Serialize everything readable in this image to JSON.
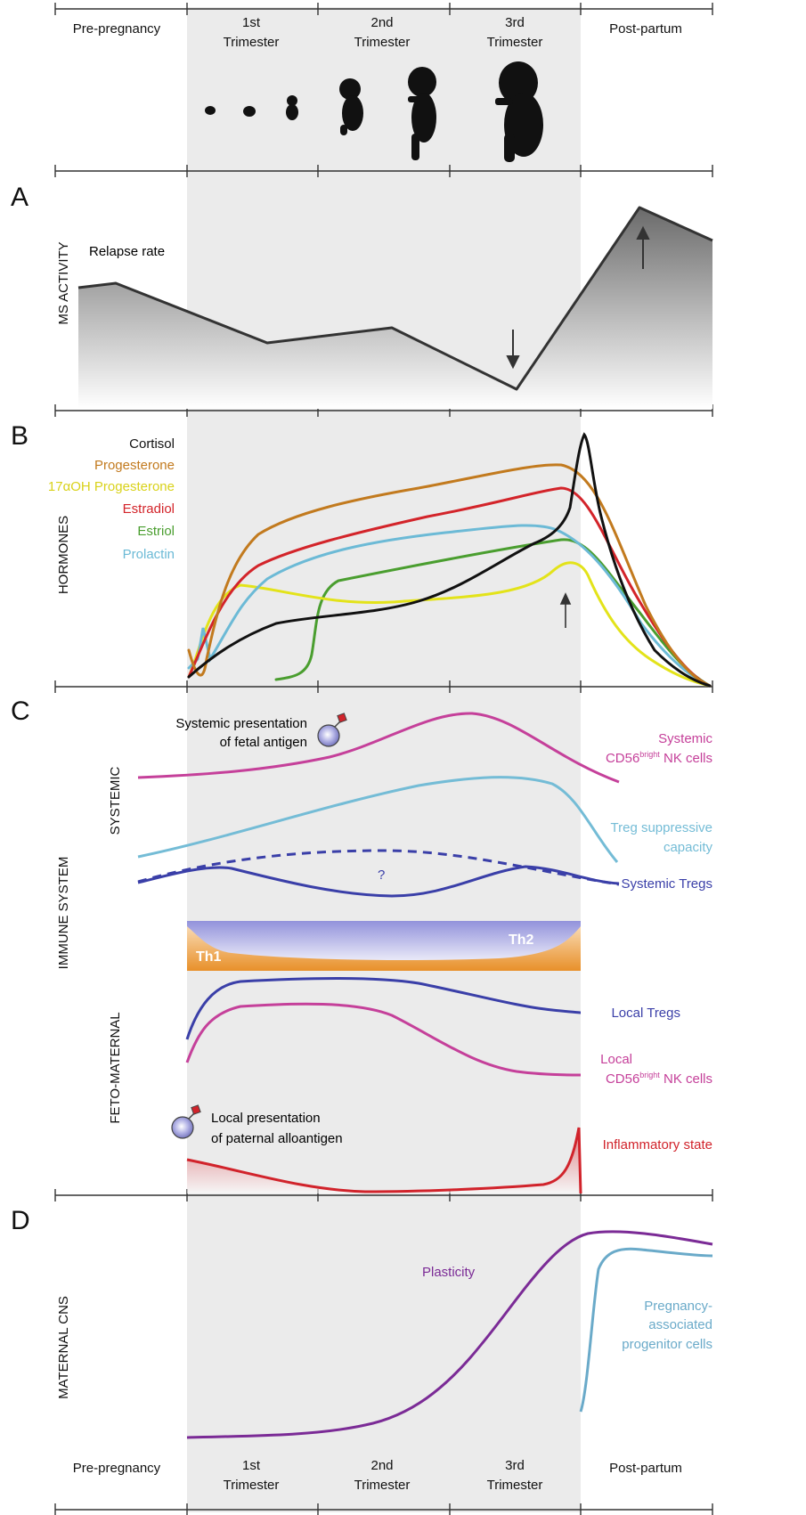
{
  "stages": [
    "Pre-pregnancy",
    "1st",
    "Trimester",
    "2nd",
    "Trimester",
    "3rd",
    "Trimester",
    "Post-partum"
  ],
  "panels": [
    "A",
    "B",
    "C",
    "D"
  ],
  "panel_a": {
    "axis": "MS ACTIVITY",
    "label": "Relapse rate"
  },
  "panel_b": {
    "axis": "HORMONES",
    "legend": [
      {
        "name": "Cortisol",
        "color": "#111111"
      },
      {
        "name": "Progesterone",
        "color": "#c27a1e"
      },
      {
        "name": "17αOH Progesterone",
        "color": "#e3e31a"
      },
      {
        "name": "Estradiol",
        "color": "#d3242a"
      },
      {
        "name": "Estriol",
        "color": "#4a9e2f"
      },
      {
        "name": "Prolactin",
        "color": "#6cbad6"
      }
    ]
  },
  "panel_c": {
    "axis": "IMMUNE SYSTEM",
    "sub_systemic": "SYSTEMIC",
    "sub_feto": "FETO-MATERNAL",
    "systemic_antigen": [
      "Systemic presentation",
      "of fetal antigen"
    ],
    "local_antigen": [
      "Local presentation",
      "of paternal alloantigen"
    ],
    "question": "?",
    "th1": "Th1",
    "th2": "Th2",
    "nk_sys": [
      "Systemic",
      "CD56",
      "bright",
      " NK cells"
    ],
    "treg_cap": [
      "Treg suppressive",
      "capacity"
    ],
    "sys_tregs": "Systemic Tregs",
    "local_tregs": "Local Tregs",
    "nk_local": [
      "Local",
      "CD56",
      "bright",
      " NK cells"
    ],
    "inflam": "Inflammatory state",
    "colors": {
      "magenta": "#c5409a",
      "cyan": "#74bcd6",
      "blue": "#3a3fa8",
      "red": "#d1232b",
      "orange": "#e8902a",
      "lavender": "#9b9be0"
    }
  },
  "panel_d": {
    "axis": "MATERNAL CNS",
    "plasticity": "Plasticity",
    "progenitor": [
      "Pregnancy-",
      "associated",
      "progenitor cells"
    ],
    "colors": {
      "purple": "#7b2b96",
      "cyan": "#6aaac9"
    }
  }
}
